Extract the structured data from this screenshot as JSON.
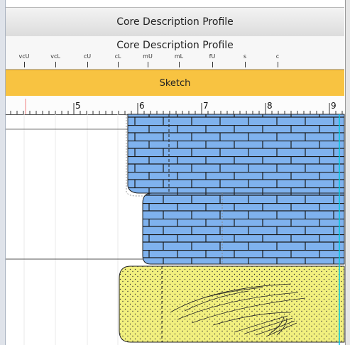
{
  "header": {
    "title": "Core Description Profile"
  },
  "scale": {
    "title": "Core Description Profile",
    "grain_sizes": [
      "vcU",
      "vcL",
      "cU",
      "cL",
      "mU",
      "mL",
      "fU",
      "s",
      "c"
    ]
  },
  "sketch": {
    "label": "Sketch"
  },
  "ruler": {
    "labels": [
      "5",
      "6",
      "7",
      "8",
      "9"
    ]
  },
  "lithology": [
    {
      "name": "brick-pattern-layer-1",
      "pattern": "brick",
      "color": "#7fb2ee"
    },
    {
      "name": "brick-pattern-layer-2",
      "pattern": "brick",
      "color": "#7fb2ee"
    },
    {
      "name": "dotted-sand-layer",
      "pattern": "dotted-with-lines",
      "color": "#f2f07f"
    }
  ],
  "colors": {
    "sketch_band": "#f8c341",
    "brick": "#7fb2ee",
    "sand": "#f2f07f",
    "guide_line": "#00c8e0"
  }
}
